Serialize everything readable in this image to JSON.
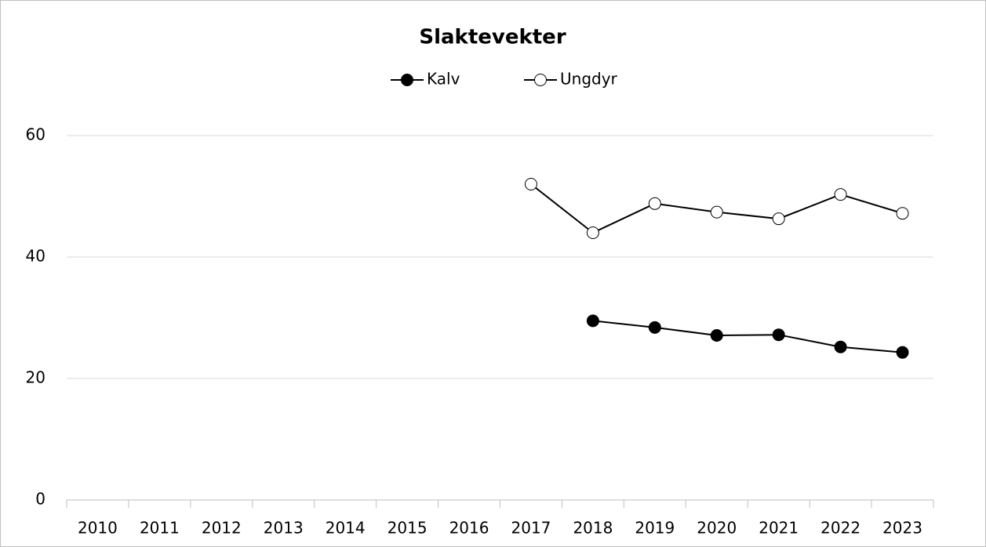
{
  "chart_data": {
    "type": "line",
    "title": "Slaktevekter",
    "categories": [
      "2010",
      "2011",
      "2012",
      "2013",
      "2014",
      "2015",
      "2016",
      "2017",
      "2018",
      "2019",
      "2020",
      "2021",
      "2022",
      "2023"
    ],
    "series": [
      {
        "name": "Kalv",
        "color": "#000000",
        "marker_fill": "#000000",
        "values": [
          null,
          null,
          null,
          null,
          null,
          null,
          null,
          null,
          29.5,
          28.4,
          27.1,
          27.2,
          25.2,
          24.3
        ]
      },
      {
        "name": "Ungdyr",
        "color": "#000000",
        "marker_fill": "#ffffff",
        "values": [
          null,
          null,
          null,
          null,
          null,
          null,
          null,
          52.0,
          44.0,
          48.8,
          47.4,
          46.3,
          50.3,
          47.2
        ]
      }
    ],
    "ylim": [
      0,
      60
    ],
    "yticks": [
      0,
      20,
      40,
      60
    ],
    "grid": true,
    "legend": "top"
  }
}
